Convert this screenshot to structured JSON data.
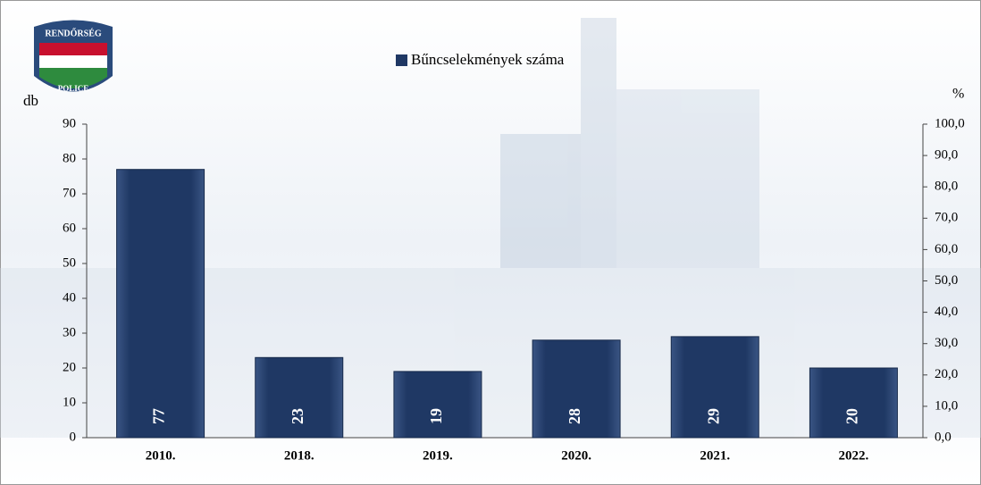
{
  "logo": {
    "top": "RENDŐRSÉG",
    "bottom": "POLICE"
  },
  "chart_data": {
    "type": "bar",
    "legend": "Bűncselekmények száma",
    "ylabel": "db",
    "y2label": "%",
    "categories": [
      "2010.",
      "2018.",
      "2019.",
      "2020.",
      "2021.",
      "2022."
    ],
    "values": [
      77,
      23,
      19,
      28,
      29,
      20
    ],
    "color": "#1f3864",
    "ylim": [
      0,
      90
    ],
    "yticks": [
      0,
      10,
      20,
      30,
      40,
      50,
      60,
      70,
      80,
      90
    ],
    "y2lim": [
      0,
      100
    ],
    "y2ticks": [
      {
        "value": 0,
        "label": "0,0"
      },
      {
        "value": 10,
        "label": "10,0"
      },
      {
        "value": 20,
        "label": "20,0"
      },
      {
        "value": 30,
        "label": "30,0"
      },
      {
        "value": 40,
        "label": "40,0"
      },
      {
        "value": 50,
        "label": "50,0"
      },
      {
        "value": 60,
        "label": "60,0"
      },
      {
        "value": 70,
        "label": "70,0"
      },
      {
        "value": 80,
        "label": "80,0"
      },
      {
        "value": 90,
        "label": "90,0"
      },
      {
        "value": 100,
        "label": "100,0"
      }
    ],
    "grid": false
  }
}
